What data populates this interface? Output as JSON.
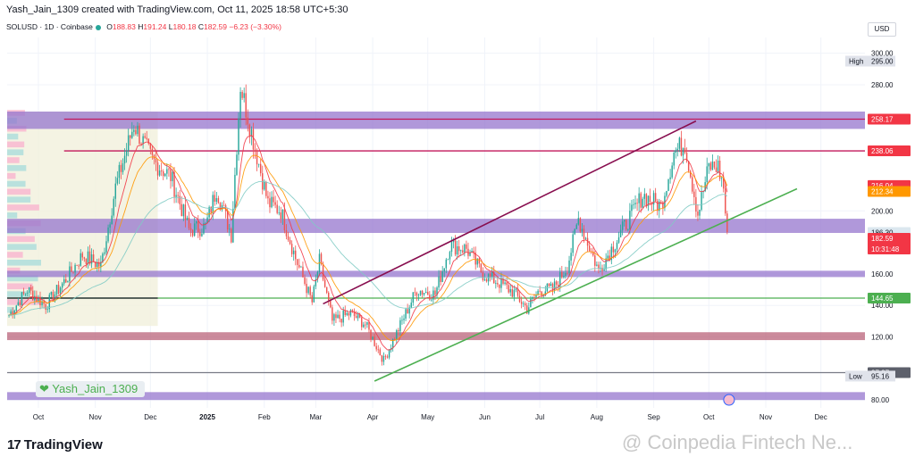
{
  "header": {
    "credit": "Yash_Jain_1309 created with TradingView.com, Oct 11, 2025 18:58 UTC+5:30"
  },
  "symbol": {
    "name": "SOLUSD · 1D · Coinbase",
    "o_label": "O",
    "o_value": "188.83",
    "h_label": "H",
    "h_value": "191.24",
    "l_label": "L",
    "l_value": "180.18",
    "c_label": "C",
    "c_value": "182.59",
    "change": "−6.23 (−3.30%)"
  },
  "currency": "USD",
  "watermark_author": "Yash_Jain_1309",
  "logo": "TradingView",
  "source_watermark": "@ Coinpedia Fintech Ne...",
  "colors": {
    "up": "#26a69a",
    "down": "#ef5350",
    "zone": "#9575cd",
    "pink_zone": "#b9637a",
    "green_line": "#4caf50",
    "purple_line": "#880e4f",
    "ema_fast": "#f23645",
    "ema_slow": "#ff9800",
    "ema_long": "#80cbc4",
    "red_level": "#c2185b"
  },
  "chart_data": {
    "type": "candlestick",
    "symbol": "SOLUSD",
    "interval": "1D",
    "exchange": "Coinbase",
    "ylim": [
      75,
      310
    ],
    "ylog": false,
    "y_ticks": [
      {
        "value": 300,
        "label": "300.00"
      },
      {
        "value": 280,
        "label": "280.00"
      },
      {
        "value": 200,
        "label": "200.00"
      },
      {
        "value": 160,
        "label": "160.00"
      },
      {
        "value": 140,
        "label": "140.00"
      },
      {
        "value": 120,
        "label": "120.00"
      },
      {
        "value": 80,
        "label": "80.00"
      }
    ],
    "x_ticks": [
      {
        "date": "2024-10-01",
        "label": "Oct",
        "bold": false
      },
      {
        "date": "2024-11-01",
        "label": "Nov",
        "bold": false
      },
      {
        "date": "2024-12-01",
        "label": "Dec",
        "bold": false
      },
      {
        "date": "2025-01-01",
        "label": "2025",
        "bold": true
      },
      {
        "date": "2025-02-01",
        "label": "Feb",
        "bold": false
      },
      {
        "date": "2025-03-01",
        "label": "Mar",
        "bold": false
      },
      {
        "date": "2025-04-01",
        "label": "Apr",
        "bold": false
      },
      {
        "date": "2025-05-01",
        "label": "May",
        "bold": false
      },
      {
        "date": "2025-06-01",
        "label": "Jun",
        "bold": false
      },
      {
        "date": "2025-07-01",
        "label": "Jul",
        "bold": false
      },
      {
        "date": "2025-08-01",
        "label": "Aug",
        "bold": false
      },
      {
        "date": "2025-09-01",
        "label": "Sep",
        "bold": false
      },
      {
        "date": "2025-10-01",
        "label": "Oct",
        "bold": false
      },
      {
        "date": "2025-11-01",
        "label": "Nov",
        "bold": false
      },
      {
        "date": "2025-12-01",
        "label": "Dec",
        "bold": false
      }
    ],
    "x_range": [
      "2024-09-14",
      "2025-12-25"
    ],
    "price_path": [
      [
        "2024-09-15",
        134
      ],
      [
        "2024-09-25",
        150
      ],
      [
        "2024-10-05",
        140
      ],
      [
        "2024-10-15",
        155
      ],
      [
        "2024-10-25",
        172
      ],
      [
        "2024-11-04",
        165
      ],
      [
        "2024-11-12",
        215
      ],
      [
        "2024-11-22",
        255
      ],
      [
        "2024-12-02",
        232
      ],
      [
        "2024-12-12",
        222
      ],
      [
        "2024-12-22",
        188
      ],
      [
        "2024-12-31",
        190
      ],
      [
        "2025-01-06",
        214
      ],
      [
        "2025-01-14",
        185
      ],
      [
        "2025-01-19",
        280
      ],
      [
        "2025-01-25",
        250
      ],
      [
        "2025-02-03",
        205
      ],
      [
        "2025-02-10",
        200
      ],
      [
        "2025-02-18",
        170
      ],
      [
        "2025-02-27",
        142
      ],
      [
        "2025-03-03",
        168
      ],
      [
        "2025-03-10",
        130
      ],
      [
        "2025-03-20",
        135
      ],
      [
        "2025-03-28",
        128
      ],
      [
        "2025-04-07",
        105
      ],
      [
        "2025-04-15",
        125
      ],
      [
        "2025-04-25",
        150
      ],
      [
        "2025-05-05",
        147
      ],
      [
        "2025-05-13",
        178
      ],
      [
        "2025-05-22",
        176
      ],
      [
        "2025-05-31",
        160
      ],
      [
        "2025-06-08",
        155
      ],
      [
        "2025-06-17",
        148
      ],
      [
        "2025-06-24",
        138
      ],
      [
        "2025-07-01",
        150
      ],
      [
        "2025-07-08",
        150
      ],
      [
        "2025-07-16",
        165
      ],
      [
        "2025-07-22",
        195
      ],
      [
        "2025-08-02",
        162
      ],
      [
        "2025-08-10",
        178
      ],
      [
        "2025-08-20",
        198
      ],
      [
        "2025-08-26",
        210
      ],
      [
        "2025-09-05",
        203
      ],
      [
        "2025-09-12",
        237
      ],
      [
        "2025-09-18",
        243
      ],
      [
        "2025-09-25",
        198
      ],
      [
        "2025-10-01",
        228
      ],
      [
        "2025-10-06",
        228
      ],
      [
        "2025-10-09",
        215
      ],
      [
        "2025-10-11",
        182.59
      ]
    ],
    "price_labels": [
      {
        "label": "High",
        "value": "295.00",
        "price": 295
      },
      {
        "value": "258.17",
        "price": 258.17,
        "style": "red"
      },
      {
        "value": "238.06",
        "price": 238.06,
        "style": "red"
      },
      {
        "value": "216.04",
        "price": 216.04,
        "style": "red"
      },
      {
        "value": "212.34",
        "price": 212.34,
        "style": "orange"
      },
      {
        "value": "186.30",
        "price": 186.3,
        "style": "teal"
      },
      {
        "value": "182.59",
        "value2": "10:31:48",
        "price": 182.59,
        "style": "red2"
      },
      {
        "value": "144.65",
        "price": 144.65,
        "style": "green"
      },
      {
        "value": "97.37",
        "price": 97.37,
        "style": "dark"
      },
      {
        "label": "Low",
        "value": "95.16",
        "price": 95.16
      }
    ],
    "zones": [
      {
        "name": "resistance-zone",
        "from": 252,
        "to": 263,
        "color": "#9575cd"
      },
      {
        "name": "mid-zone",
        "from": 186,
        "to": 195,
        "color": "#9575cd"
      },
      {
        "name": "support-zone",
        "from": 158,
        "to": 162,
        "color": "#9575cd"
      },
      {
        "name": "demand-zone",
        "from": 118,
        "to": 123,
        "color": "#b9637a"
      },
      {
        "name": "bottom-zone",
        "from": 80,
        "to": 85,
        "color": "#9575cd"
      }
    ],
    "levels": [
      {
        "price": 258.17,
        "color": "#c2185b",
        "start": "2024-10-15"
      },
      {
        "price": 238.06,
        "color": "#c2185b",
        "start": "2024-10-15"
      },
      {
        "price": 144.65,
        "color": "#4caf50",
        "start": "2024-09-14"
      },
      {
        "price": 97.37,
        "color": "#787b86",
        "start": "2024-09-14"
      }
    ],
    "trendlines": [
      {
        "name": "upper-channel",
        "color": "#880e4f",
        "p1": [
          "2025-03-05",
          141
        ],
        "p2": [
          "2025-09-24",
          257
        ]
      },
      {
        "name": "lower-channel",
        "color": "#4caf50",
        "p1": [
          "2025-04-02",
          92
        ],
        "p2": [
          "2025-11-18",
          214
        ]
      }
    ]
  }
}
